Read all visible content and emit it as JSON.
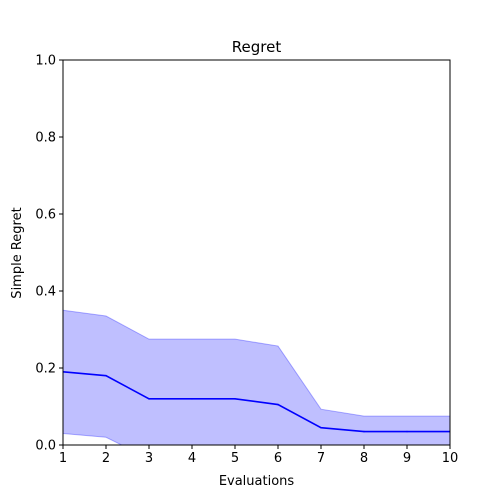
{
  "chart_data": {
    "type": "line",
    "title": "Regret",
    "xlabel": "Evaluations",
    "ylabel": "Simple Regret",
    "xlim": [
      1,
      10
    ],
    "ylim": [
      0,
      1.0
    ],
    "x_ticks": [
      "1",
      "2",
      "3",
      "4",
      "5",
      "6",
      "7",
      "8",
      "9",
      "10"
    ],
    "y_ticks": [
      "0.0",
      "0.2",
      "0.4",
      "0.6",
      "0.8",
      "1.0"
    ],
    "grid": false,
    "x": [
      1,
      2,
      3,
      4,
      5,
      6,
      7,
      8,
      9,
      10
    ],
    "series": [
      {
        "values": [
          0.19,
          0.18,
          0.12,
          0.12,
          0.12,
          0.105,
          0.045,
          0.035,
          0.035,
          0.035
        ],
        "upper": [
          0.35,
          0.335,
          0.275,
          0.275,
          0.275,
          0.257,
          0.093,
          0.075,
          0.075,
          0.075
        ],
        "lower": [
          0.03,
          0.02,
          -0.035,
          -0.035,
          -0.035,
          -0.047,
          -0.003,
          -0.005,
          -0.005,
          -0.005
        ],
        "color": "#0000ff",
        "band_color": "#0000ff"
      }
    ]
  }
}
